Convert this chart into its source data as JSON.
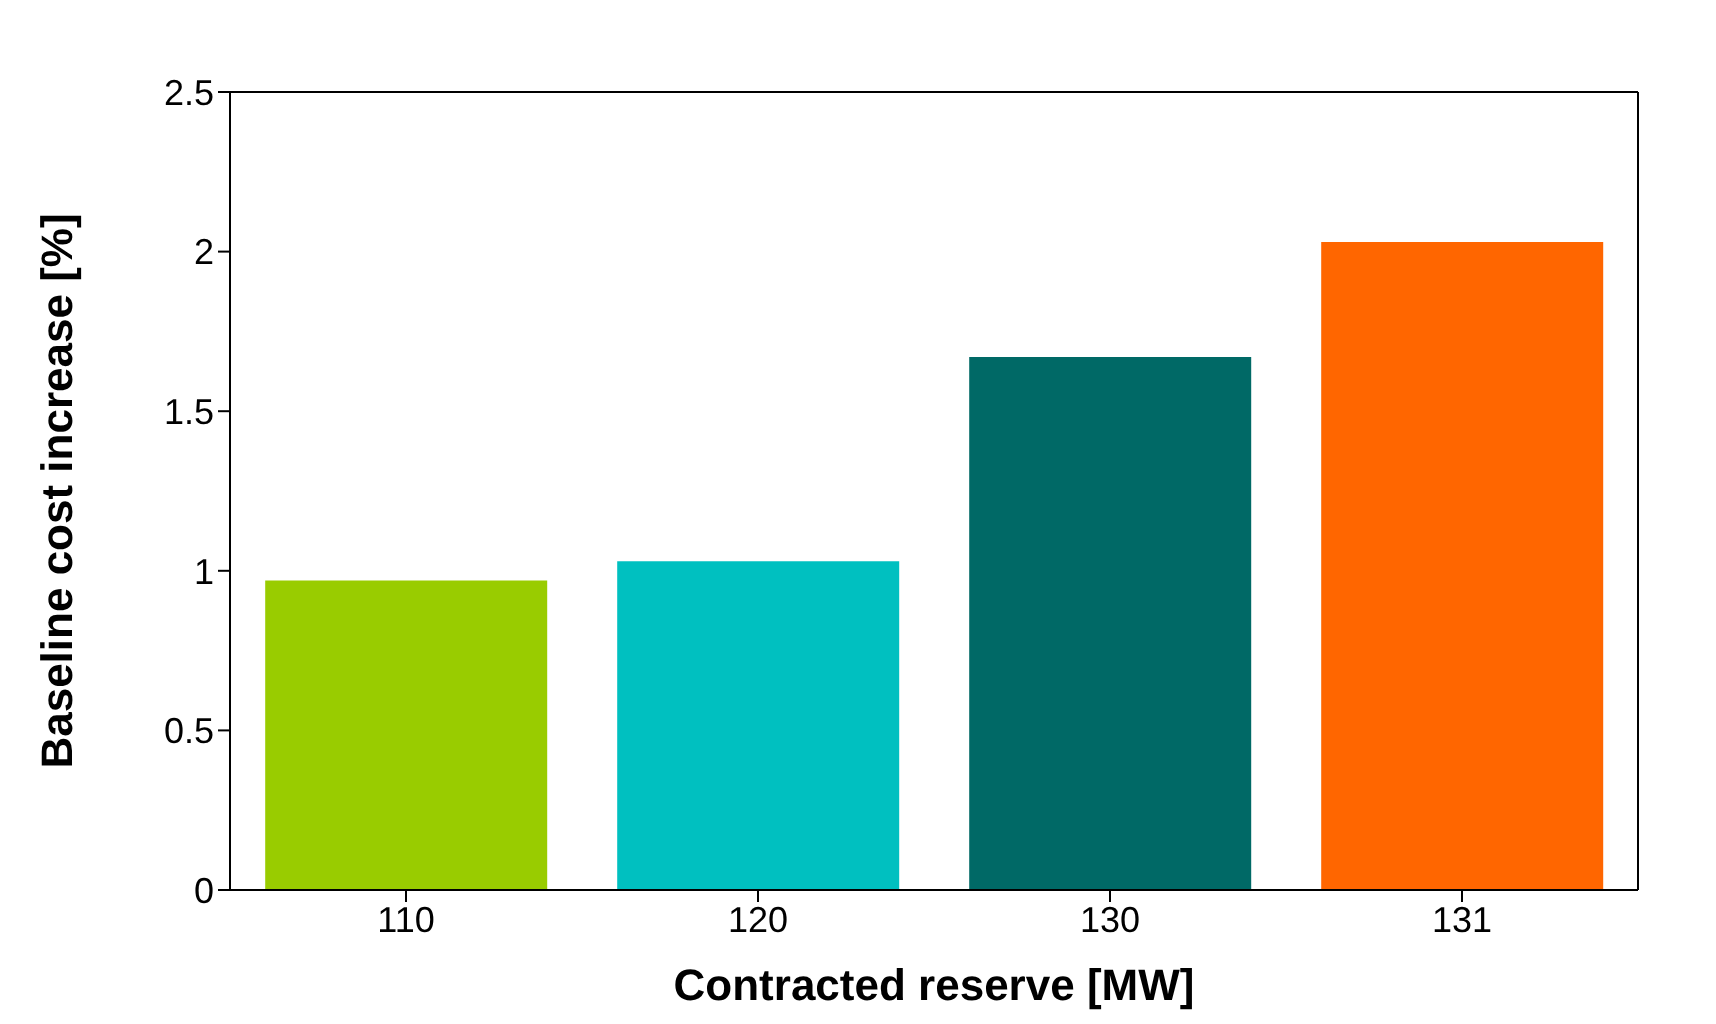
{
  "chart_data": {
    "type": "bar",
    "xlabel": "Contracted reserve [MW]",
    "ylabel": "Baseline cost increase [%]",
    "categories": [
      "110",
      "120",
      "130",
      "131"
    ],
    "values": [
      0.97,
      1.03,
      1.67,
      2.03
    ],
    "colors": [
      "#99cc00",
      "#00c0c0",
      "#006966",
      "#ff6600"
    ],
    "ylim": [
      0,
      2.5
    ],
    "yticks": [
      0,
      0.5,
      1,
      1.5,
      2,
      2.5
    ],
    "grid": false,
    "legend": false
  }
}
